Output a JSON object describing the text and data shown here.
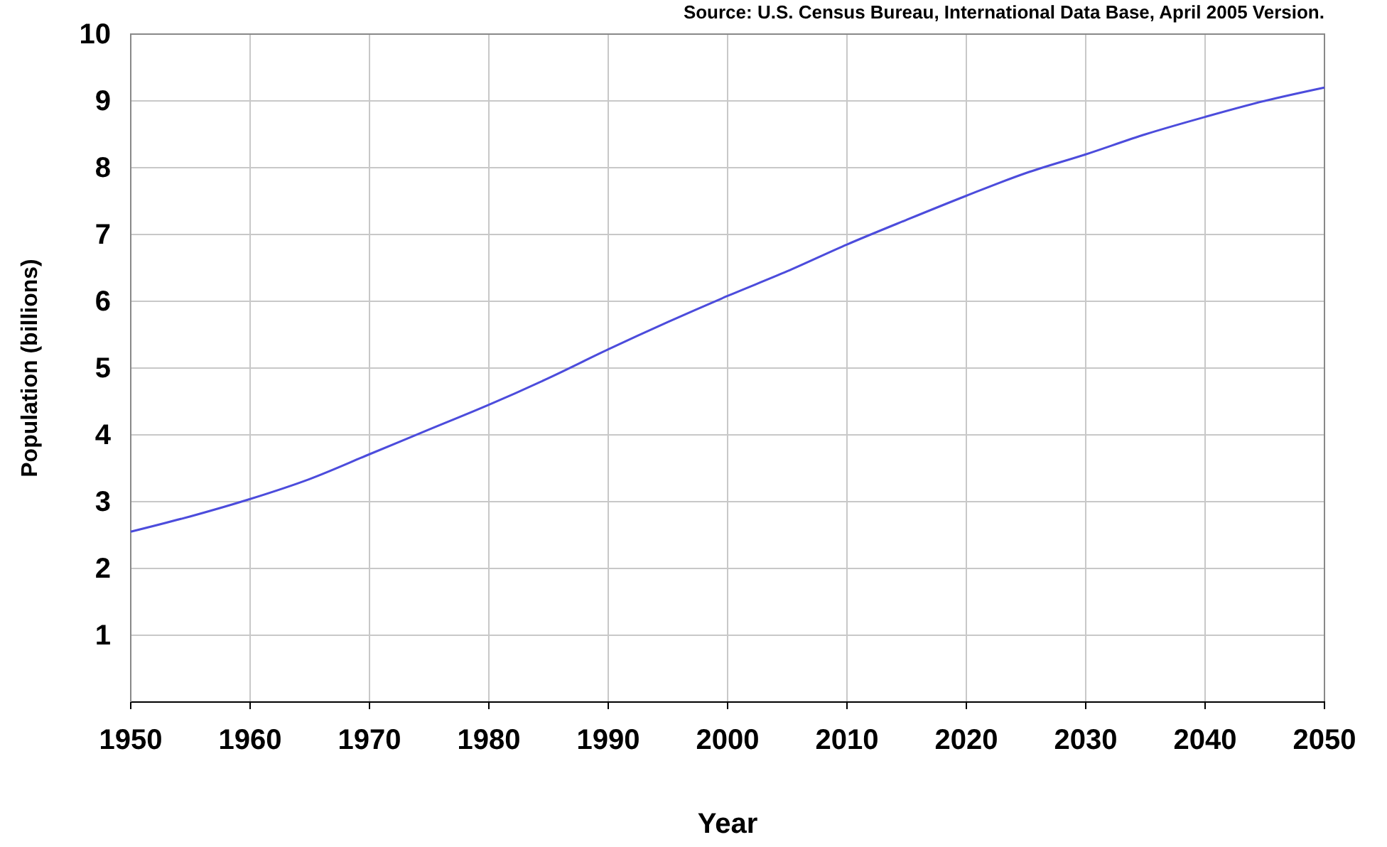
{
  "chart_data": {
    "type": "line",
    "xlabel": "Year",
    "ylabel": "Population (billions)",
    "annotations": [
      "Source: U.S. Census Bureau, International Data Base, April 2005 Version."
    ],
    "x": [
      1950,
      1955,
      1960,
      1965,
      1970,
      1975,
      1980,
      1985,
      1990,
      1995,
      2000,
      2005,
      2010,
      2015,
      2020,
      2025,
      2030,
      2035,
      2040,
      2045,
      2050
    ],
    "series": [
      {
        "color": "#4c4cdc",
        "values": [
          2.55,
          2.78,
          3.04,
          3.34,
          3.71,
          4.08,
          4.45,
          4.85,
          5.28,
          5.69,
          6.08,
          6.45,
          6.85,
          7.22,
          7.58,
          7.92,
          8.2,
          8.5,
          8.76,
          9.0,
          9.2
        ]
      }
    ],
    "xlim": [
      1950,
      2050
    ],
    "xticks": [
      1950,
      1960,
      1970,
      1980,
      1990,
      2000,
      2010,
      2020,
      2030,
      2040,
      2050
    ],
    "ylim": [
      0,
      10
    ],
    "yticks": [
      1,
      2,
      3,
      4,
      5,
      6,
      7,
      8,
      9,
      10
    ],
    "grid": true,
    "marker": "none",
    "line_style": "solid"
  }
}
